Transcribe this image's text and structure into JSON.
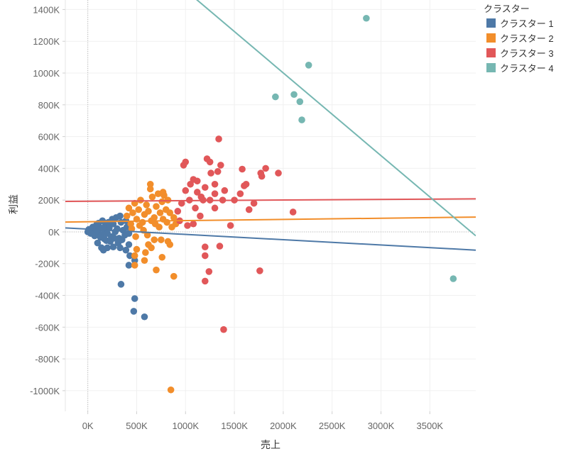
{
  "chart_data": {
    "type": "scatter",
    "xlabel": "売上",
    "ylabel": "利益",
    "xlim": [
      -230000,
      3970000
    ],
    "ylim": [
      -1130000,
      1460000
    ],
    "x_ticks": [
      0,
      500000,
      1000000,
      1500000,
      2000000,
      2500000,
      3000000,
      3500000
    ],
    "x_tick_labels": [
      "0K",
      "500K",
      "1000K",
      "1500K",
      "2000K",
      "2500K",
      "3000K",
      "3500K"
    ],
    "y_ticks": [
      1400000,
      1200000,
      1000000,
      800000,
      600000,
      400000,
      200000,
      0,
      -200000,
      -400000,
      -600000,
      -800000,
      -1000000
    ],
    "y_tick_labels": [
      "1400K",
      "1200K",
      "1000K",
      "800K",
      "600K",
      "400K",
      "200K",
      "0K",
      "-200K",
      "-400K",
      "-600K",
      "-800K",
      "-1000K"
    ],
    "grid": true,
    "legend_title": "クラスター",
    "legend_position": "right",
    "series": [
      {
        "name": "クラスター 1",
        "color": "#4e79a7",
        "trend": [
          [
            -230000,
            25000
          ],
          [
            3970000,
            -115000
          ]
        ],
        "points": [
          [
            0,
            0
          ],
          [
            20000,
            10000
          ],
          [
            40000,
            -5000
          ],
          [
            60000,
            20000
          ],
          [
            80000,
            -15000
          ],
          [
            100000,
            5000
          ],
          [
            120000,
            30000
          ],
          [
            140000,
            -20000
          ],
          [
            160000,
            15000
          ],
          [
            180000,
            40000
          ],
          [
            200000,
            -10000
          ],
          [
            220000,
            25000
          ],
          [
            240000,
            -30000
          ],
          [
            260000,
            50000
          ],
          [
            280000,
            0
          ],
          [
            300000,
            20000
          ],
          [
            320000,
            -40000
          ],
          [
            340000,
            60000
          ],
          [
            360000,
            10000
          ],
          [
            380000,
            -20000
          ],
          [
            400000,
            30000
          ],
          [
            50000,
            30000
          ],
          [
            90000,
            45000
          ],
          [
            130000,
            -35000
          ],
          [
            170000,
            -45000
          ],
          [
            210000,
            60000
          ],
          [
            250000,
            80000
          ],
          [
            290000,
            90000
          ],
          [
            330000,
            100000
          ],
          [
            70000,
            -25000
          ],
          [
            110000,
            55000
          ],
          [
            150000,
            70000
          ],
          [
            190000,
            -55000
          ],
          [
            230000,
            -60000
          ],
          [
            270000,
            -40000
          ],
          [
            310000,
            -70000
          ],
          [
            350000,
            -50000
          ],
          [
            390000,
            70000
          ],
          [
            420000,
            -10000
          ],
          [
            30000,
            -10000
          ],
          [
            10000,
            15000
          ],
          [
            100000,
            -70000
          ],
          [
            140000,
            -100000
          ],
          [
            160000,
            -115000
          ],
          [
            200000,
            -100000
          ],
          [
            260000,
            -95000
          ],
          [
            330000,
            -100000
          ],
          [
            390000,
            -115000
          ],
          [
            420000,
            -80000
          ],
          [
            430000,
            -150000
          ],
          [
            420000,
            -210000
          ],
          [
            480000,
            -180000
          ],
          [
            340000,
            -330000
          ],
          [
            480000,
            -420000
          ],
          [
            470000,
            -500000
          ],
          [
            580000,
            -535000
          ]
        ]
      },
      {
        "name": "クラスター 2",
        "color": "#f28e2b",
        "trend": [
          [
            -230000,
            62000
          ],
          [
            3970000,
            93000
          ]
        ],
        "points": [
          [
            400000,
            100000
          ],
          [
            420000,
            150000
          ],
          [
            440000,
            50000
          ],
          [
            460000,
            120000
          ],
          [
            480000,
            180000
          ],
          [
            500000,
            80000
          ],
          [
            520000,
            140000
          ],
          [
            540000,
            200000
          ],
          [
            560000,
            60000
          ],
          [
            580000,
            110000
          ],
          [
            600000,
            170000
          ],
          [
            620000,
            130000
          ],
          [
            640000,
            300000
          ],
          [
            660000,
            220000
          ],
          [
            680000,
            90000
          ],
          [
            700000,
            160000
          ],
          [
            720000,
            240000
          ],
          [
            740000,
            120000
          ],
          [
            760000,
            190000
          ],
          [
            780000,
            230000
          ],
          [
            800000,
            140000
          ],
          [
            820000,
            200000
          ],
          [
            450000,
            20000
          ],
          [
            490000,
            -30000
          ],
          [
            530000,
            40000
          ],
          [
            570000,
            10000
          ],
          [
            610000,
            -20000
          ],
          [
            650000,
            70000
          ],
          [
            690000,
            50000
          ],
          [
            730000,
            30000
          ],
          [
            770000,
            80000
          ],
          [
            810000,
            60000
          ],
          [
            840000,
            120000
          ],
          [
            860000,
            30000
          ],
          [
            880000,
            90000
          ],
          [
            900000,
            50000
          ],
          [
            500000,
            -110000
          ],
          [
            480000,
            -150000
          ],
          [
            590000,
            -130000
          ],
          [
            620000,
            -80000
          ],
          [
            650000,
            -100000
          ],
          [
            680000,
            -50000
          ],
          [
            750000,
            -50000
          ],
          [
            820000,
            -60000
          ],
          [
            840000,
            -80000
          ],
          [
            760000,
            -160000
          ],
          [
            580000,
            -180000
          ],
          [
            480000,
            -210000
          ],
          [
            700000,
            -240000
          ],
          [
            880000,
            -280000
          ],
          [
            850000,
            -995000
          ],
          [
            640000,
            270000
          ],
          [
            770000,
            250000
          ]
        ]
      },
      {
        "name": "クラスター 3",
        "color": "#e15759",
        "trend": [
          [
            -230000,
            192000
          ],
          [
            3970000,
            208000
          ]
        ],
        "points": [
          [
            980000,
            420000
          ],
          [
            1000000,
            440000
          ],
          [
            1050000,
            300000
          ],
          [
            1080000,
            330000
          ],
          [
            1120000,
            250000
          ],
          [
            1180000,
            200000
          ],
          [
            1220000,
            460000
          ],
          [
            1250000,
            440000
          ],
          [
            1300000,
            300000
          ],
          [
            1330000,
            380000
          ],
          [
            1360000,
            420000
          ],
          [
            1340000,
            585000
          ],
          [
            1580000,
            395000
          ],
          [
            1600000,
            290000
          ],
          [
            1620000,
            300000
          ],
          [
            1770000,
            370000
          ],
          [
            1780000,
            350000
          ],
          [
            1820000,
            400000
          ],
          [
            1950000,
            370000
          ],
          [
            1700000,
            180000
          ],
          [
            1650000,
            140000
          ],
          [
            1400000,
            260000
          ],
          [
            1380000,
            200000
          ],
          [
            1300000,
            240000
          ],
          [
            1200000,
            280000
          ],
          [
            1160000,
            220000
          ],
          [
            1100000,
            150000
          ],
          [
            1040000,
            200000
          ],
          [
            1000000,
            260000
          ],
          [
            960000,
            180000
          ],
          [
            920000,
            130000
          ],
          [
            940000,
            70000
          ],
          [
            1020000,
            40000
          ],
          [
            1080000,
            50000
          ],
          [
            1150000,
            100000
          ],
          [
            1250000,
            200000
          ],
          [
            1300000,
            150000
          ],
          [
            1460000,
            40000
          ],
          [
            2100000,
            125000
          ],
          [
            1200000,
            -95000
          ],
          [
            1350000,
            -90000
          ],
          [
            1200000,
            -150000
          ],
          [
            1240000,
            -250000
          ],
          [
            1200000,
            -310000
          ],
          [
            1760000,
            -245000
          ],
          [
            1390000,
            -615000
          ],
          [
            1500000,
            200000
          ],
          [
            1560000,
            240000
          ],
          [
            1120000,
            320000
          ],
          [
            1260000,
            370000
          ]
        ]
      },
      {
        "name": "クラスター 4",
        "color": "#76b7b2",
        "trend": [
          [
            1080000,
            1480000
          ],
          [
            3970000,
            -25000
          ]
        ],
        "points": [
          [
            2850000,
            1345000
          ],
          [
            2260000,
            1050000
          ],
          [
            2110000,
            865000
          ],
          [
            2170000,
            820000
          ],
          [
            1920000,
            850000
          ],
          [
            2190000,
            705000
          ],
          [
            3740000,
            -295000
          ]
        ]
      }
    ]
  }
}
